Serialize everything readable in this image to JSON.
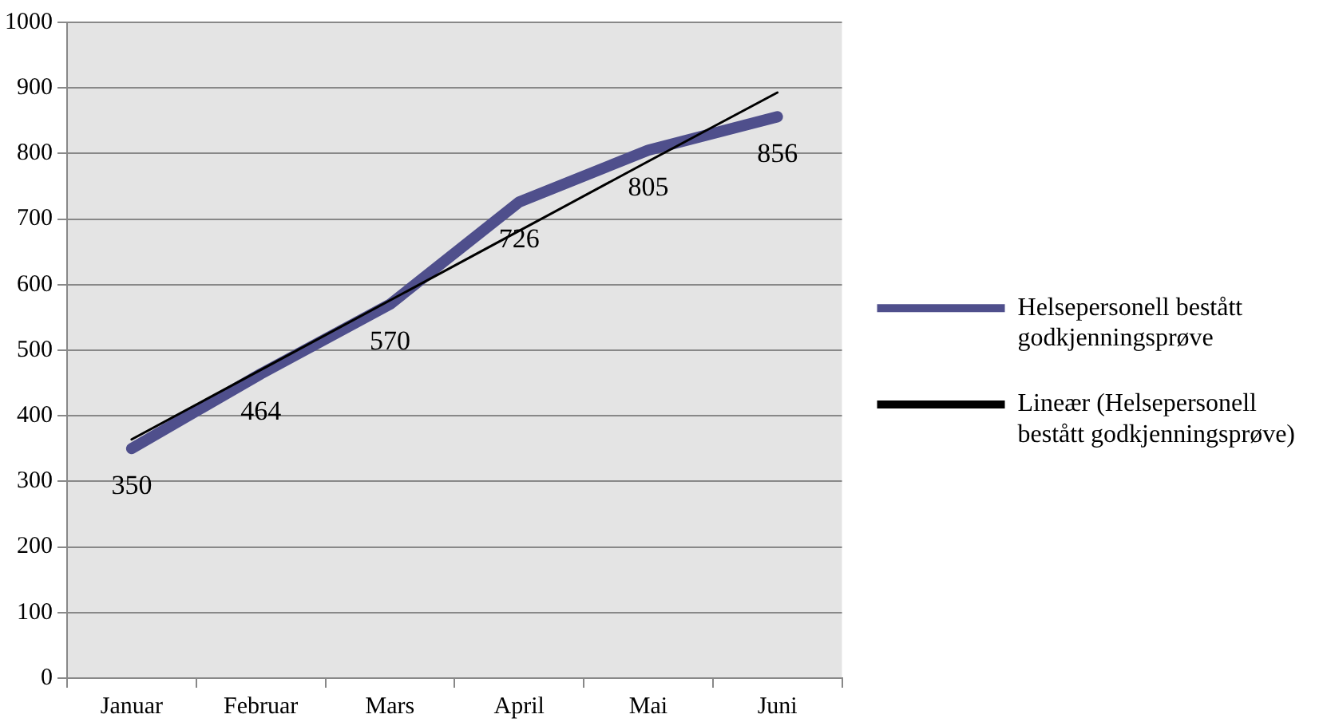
{
  "chart_data": {
    "type": "line",
    "categories": [
      "Januar",
      "Februar",
      "Mars",
      "April",
      "Mai",
      "Juni"
    ],
    "series": [
      {
        "name": "Helsepersonell bestått godkjenningsprøve",
        "color": "#4f4f8c",
        "values": [
          350,
          464,
          570,
          726,
          805,
          856
        ],
        "value_labels": [
          "350",
          "464",
          "570",
          "726",
          "805",
          "856"
        ]
      },
      {
        "name": "Lineær (Helsepersonell bestått godkjenningsprøve)",
        "color": "#000000",
        "values": [
          364,
          470,
          576,
          682,
          788,
          893
        ],
        "type": "line"
      }
    ],
    "ylim": [
      0,
      1000
    ],
    "yticks": [
      0,
      100,
      200,
      300,
      400,
      500,
      600,
      700,
      800,
      900,
      1000
    ],
    "grid": "y",
    "legend": "right",
    "marker": "none"
  }
}
